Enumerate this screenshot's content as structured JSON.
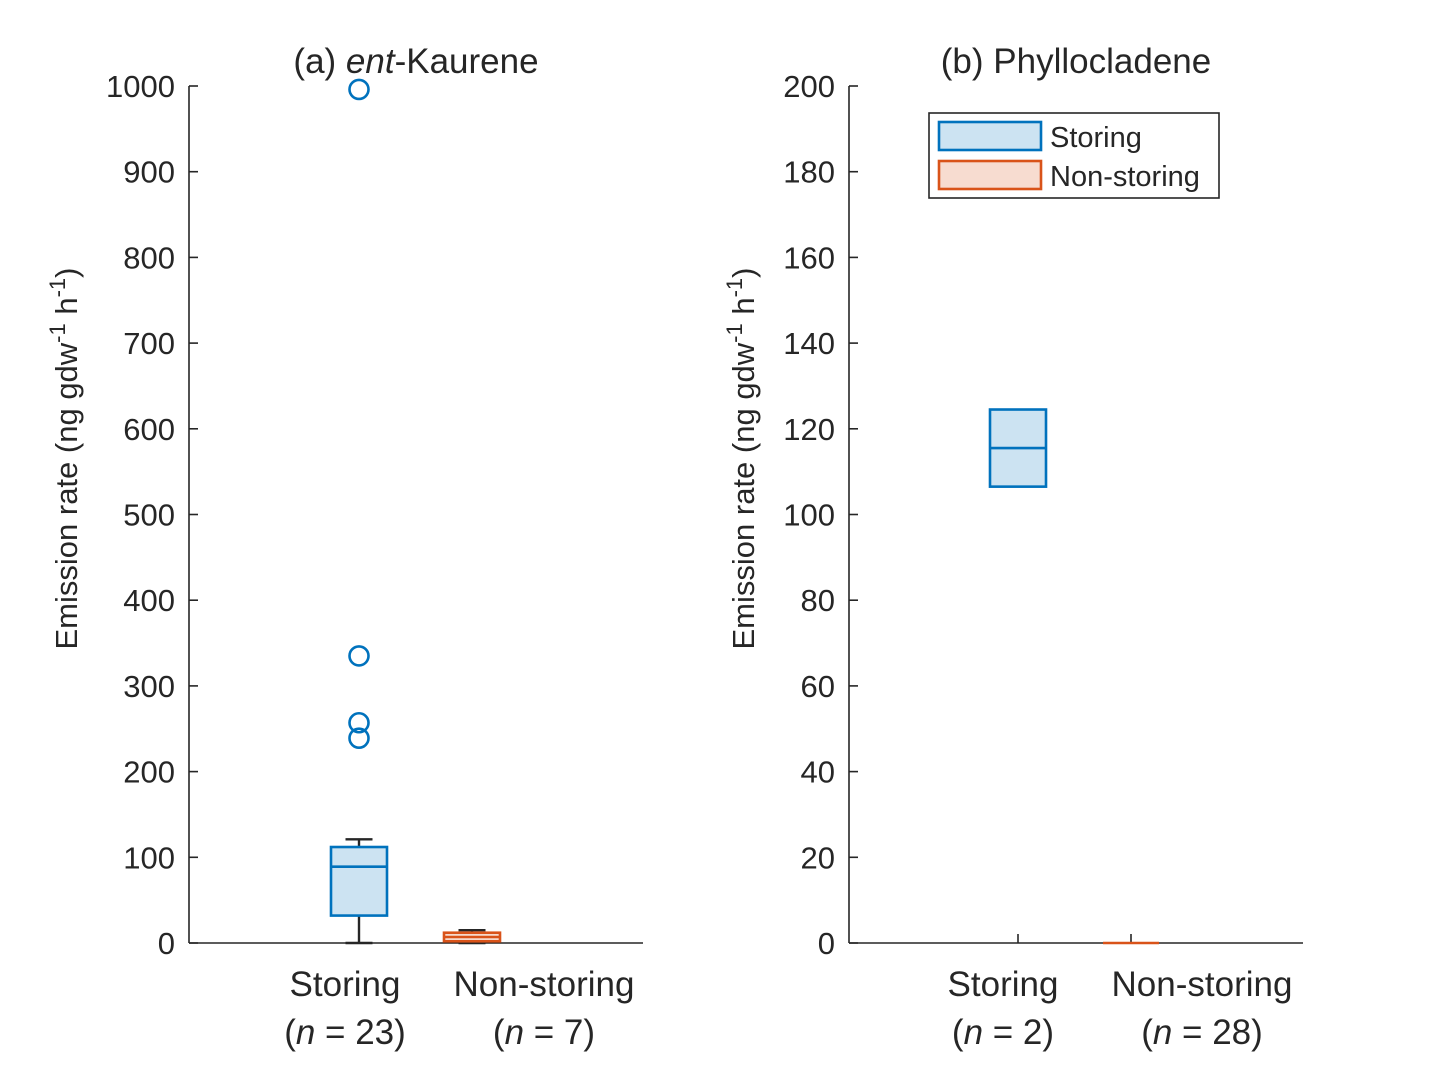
{
  "chart_data": [
    {
      "type": "box",
      "title_prefix": "(a) ",
      "title_italic": "ent",
      "title_suffix": "-Kaurene",
      "ylabel": "Emission rate (ng gdw",
      "ylabel_sup1": "-1",
      "ylabel_mid": " h",
      "ylabel_sup2": "-1",
      "ylabel_end": ")",
      "ylim": [
        0,
        1000
      ],
      "yticks": [
        0,
        100,
        200,
        300,
        400,
        500,
        600,
        700,
        800,
        900,
        1000
      ],
      "categories": [
        {
          "name": "Storing",
          "n_open": "(",
          "n_italic": "n",
          "n_rest": " = 23)"
        },
        {
          "name": "Non-storing",
          "n_open": "(",
          "n_italic": "n",
          "n_rest": " = 7)"
        }
      ],
      "series": [
        {
          "name": "Storing",
          "q1": 32,
          "median": 89,
          "q3": 112,
          "whisker_low": 0,
          "whisker_high": 121,
          "outliers": [
            239,
            257,
            335,
            996
          ],
          "color": "#0072BD",
          "fill": "#cce3f2"
        },
        {
          "name": "Non-storing",
          "q1": 2,
          "median": 7,
          "q3": 12,
          "whisker_low": 0,
          "whisker_high": 15,
          "outliers": [],
          "color": "#D95319",
          "fill": "#f7dcd0"
        }
      ],
      "legend": false
    },
    {
      "type": "box",
      "title_prefix": "(b) ",
      "title_italic": "",
      "title_suffix": "Phyllocladene",
      "ylabel": "Emission rate (ng gdw",
      "ylabel_sup1": "-1",
      "ylabel_mid": " h",
      "ylabel_sup2": "-1",
      "ylabel_end": ")",
      "ylim": [
        0,
        200
      ],
      "yticks": [
        0,
        20,
        40,
        60,
        80,
        100,
        120,
        140,
        160,
        180,
        200
      ],
      "categories": [
        {
          "name": "Storing",
          "n_open": "(",
          "n_italic": "n",
          "n_rest": " = 2)"
        },
        {
          "name": "Non-storing",
          "n_open": "(",
          "n_italic": "n",
          "n_rest": " = 28)"
        }
      ],
      "series": [
        {
          "name": "Storing",
          "q1": 106.5,
          "median": 115.5,
          "q3": 124.5,
          "whisker_low": 106.5,
          "whisker_high": 124.5,
          "outliers": [],
          "color": "#0072BD",
          "fill": "#cce3f2"
        },
        {
          "name": "Non-storing",
          "q1": 0,
          "median": 0,
          "q3": 0,
          "whisker_low": 0,
          "whisker_high": 0,
          "outliers": [],
          "color": "#D95319",
          "fill": "#f7dcd0"
        }
      ],
      "legend": true,
      "legend_placement": "top-right",
      "legend_entries": [
        "Storing",
        "Non-storing"
      ]
    }
  ]
}
